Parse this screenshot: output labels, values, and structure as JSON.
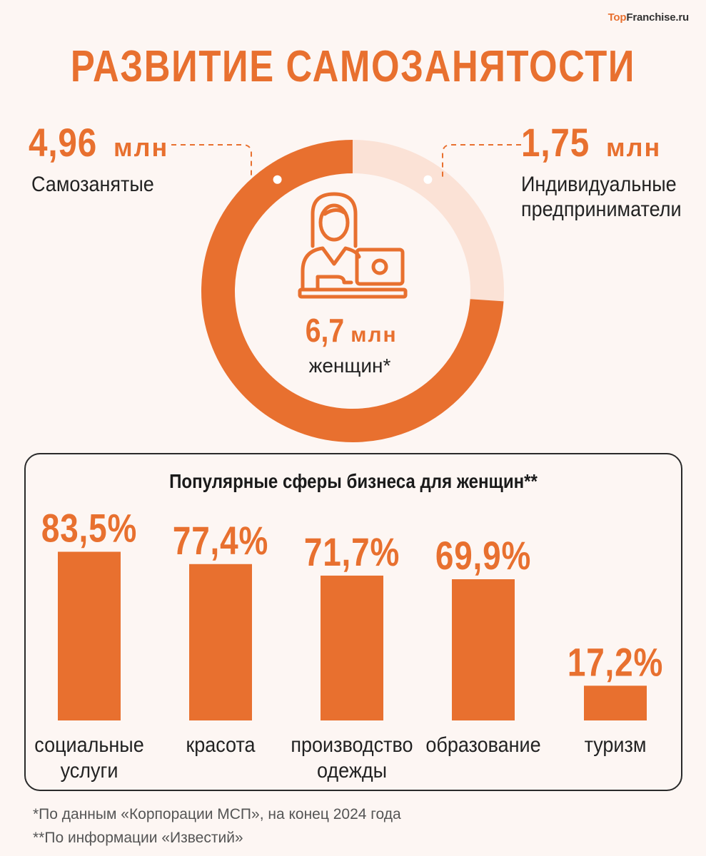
{
  "brand": {
    "part1": "Top",
    "part2": "Franchise.ru"
  },
  "title": "РАЗВИТИЕ САМОЗАНЯТОСТИ",
  "stats": {
    "self_employed": {
      "value": "4,96",
      "unit": "млн",
      "label": "Самозанятые"
    },
    "entrepreneurs": {
      "value": "1,75",
      "unit": "млн",
      "label_line1": "Индивидуальные",
      "label_line2": "предприниматели"
    },
    "total": {
      "value": "6,7",
      "unit": "млн",
      "label": "женщин*"
    }
  },
  "colors": {
    "accent": "#e8702f",
    "accent_light": "#fbe2d6",
    "background": "#fdf6f3",
    "text": "#222222"
  },
  "icons": {
    "center": "woman-with-laptop-icon"
  },
  "chart_data": [
    {
      "type": "pie",
      "style": "donut",
      "slices": [
        {
          "label": "Самозанятые",
          "value": 4.96
        },
        {
          "label": "Индивидуальные предприниматели",
          "value": 1.75
        }
      ],
      "unit": "млн",
      "total": 6.7
    },
    {
      "type": "bar",
      "title": "Популярные сферы бизнеса для женщин**",
      "categories": [
        [
          "социальные",
          "услуги"
        ],
        [
          "красота"
        ],
        [
          "производство",
          "одежды"
        ],
        [
          "образование"
        ],
        [
          "туризм"
        ]
      ],
      "values": [
        83.5,
        77.4,
        71.7,
        69.9,
        17.2
      ],
      "value_labels": [
        "83,5%",
        "77,4%",
        "71,7%",
        "69,9%",
        "17,2%"
      ],
      "unit": "%",
      "ylim": [
        0,
        100
      ],
      "grid": false
    }
  ],
  "footnotes": [
    "*По данным «Корпорации МСП», на конец 2024 года",
    "**По информации «Известий»"
  ]
}
